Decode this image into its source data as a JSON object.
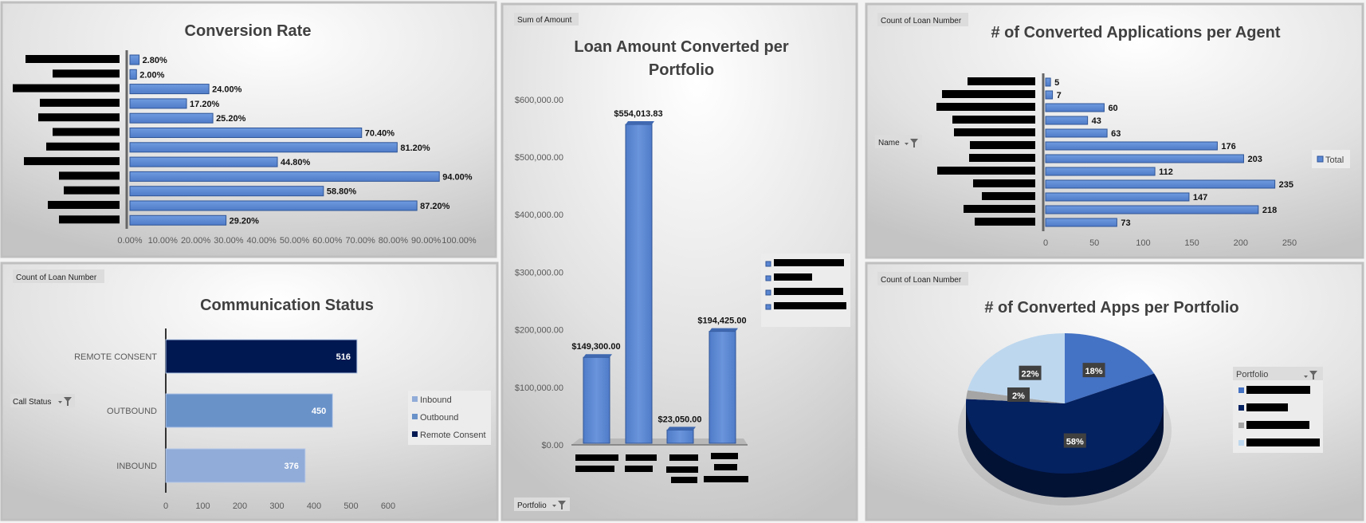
{
  "colors": {
    "bar": "#5a86d2",
    "bar_stroke": "#2f5597",
    "navy": "#001851",
    "outbound": "#6992c9",
    "inbound": "#91acd8",
    "pie_blue": "#4472c4",
    "pie_navy": "#042160",
    "pie_gray": "#a5a5a5",
    "pie_light": "#bdd7ee"
  },
  "chart_data": [
    {
      "type": "bar",
      "orientation": "horizontal",
      "title": "Conversion Rate",
      "values": [
        2.8,
        2.0,
        24.0,
        17.2,
        25.2,
        70.4,
        81.2,
        44.8,
        94.0,
        58.8,
        87.2,
        29.2
      ],
      "value_labels": [
        "2.80%",
        "2.00%",
        "24.00%",
        "17.20%",
        "25.20%",
        "70.40%",
        "81.20%",
        "44.80%",
        "94.00%",
        "58.80%",
        "87.20%",
        "29.20%"
      ],
      "xlim": [
        0,
        100
      ],
      "x_ticks": [
        "0.00%",
        "10.00%",
        "20.00%",
        "30.00%",
        "40.00%",
        "50.00%",
        "60.00%",
        "70.00%",
        "80.00%",
        "90.00%",
        "100.00%"
      ]
    },
    {
      "type": "bar",
      "orientation": "horizontal",
      "title": "Communication Status",
      "field_button": "Count of Loan Number",
      "filter_button": "Call Status",
      "categories": [
        "REMOTE CONSENT",
        "OUTBOUND",
        "INBOUND"
      ],
      "values": [
        516,
        450,
        376
      ],
      "xlim": [
        0,
        600
      ],
      "x_ticks": [
        "0",
        "100",
        "200",
        "300",
        "400",
        "500",
        "600"
      ],
      "legend": [
        "Inbound",
        "Outbound",
        "Remote Consent"
      ],
      "legend_position": "right"
    },
    {
      "type": "bar",
      "title_lines": [
        "Loan Amount Converted per",
        "Portfolio"
      ],
      "field_button": "Sum of Amount",
      "filter_button": "Portfolio",
      "values": [
        149300.0,
        554013.83,
        23050.0,
        194425.0
      ],
      "value_labels": [
        "$149,300.00",
        "$554,013.83",
        "$23,050.00",
        "$194,425.00"
      ],
      "ylim": [
        0,
        600000
      ],
      "y_ticks": [
        "$0.00",
        "$100,000.00",
        "$200,000.00",
        "$300,000.00",
        "$400,000.00",
        "$500,000.00",
        "$600,000.00"
      ],
      "legend_position": "right"
    },
    {
      "type": "bar",
      "orientation": "horizontal",
      "title": "# of Converted Applications per Agent",
      "field_button": "Count of Loan Number",
      "filter_button": "Name",
      "values": [
        5,
        7,
        60,
        43,
        63,
        176,
        203,
        112,
        235,
        147,
        218,
        73
      ],
      "xlim": [
        0,
        250
      ],
      "x_ticks": [
        "0",
        "50",
        "100",
        "150",
        "200",
        "250"
      ],
      "legend": [
        "Total"
      ],
      "legend_position": "right"
    },
    {
      "type": "pie",
      "title": "# of Converted Apps per Portfolio",
      "field_button": "Count of Loan Number",
      "legend_title": "Portfolio",
      "values": [
        18,
        58,
        2,
        22
      ],
      "value_labels": [
        "18%",
        "58%",
        "2%",
        "22%"
      ],
      "legend_position": "right"
    }
  ]
}
